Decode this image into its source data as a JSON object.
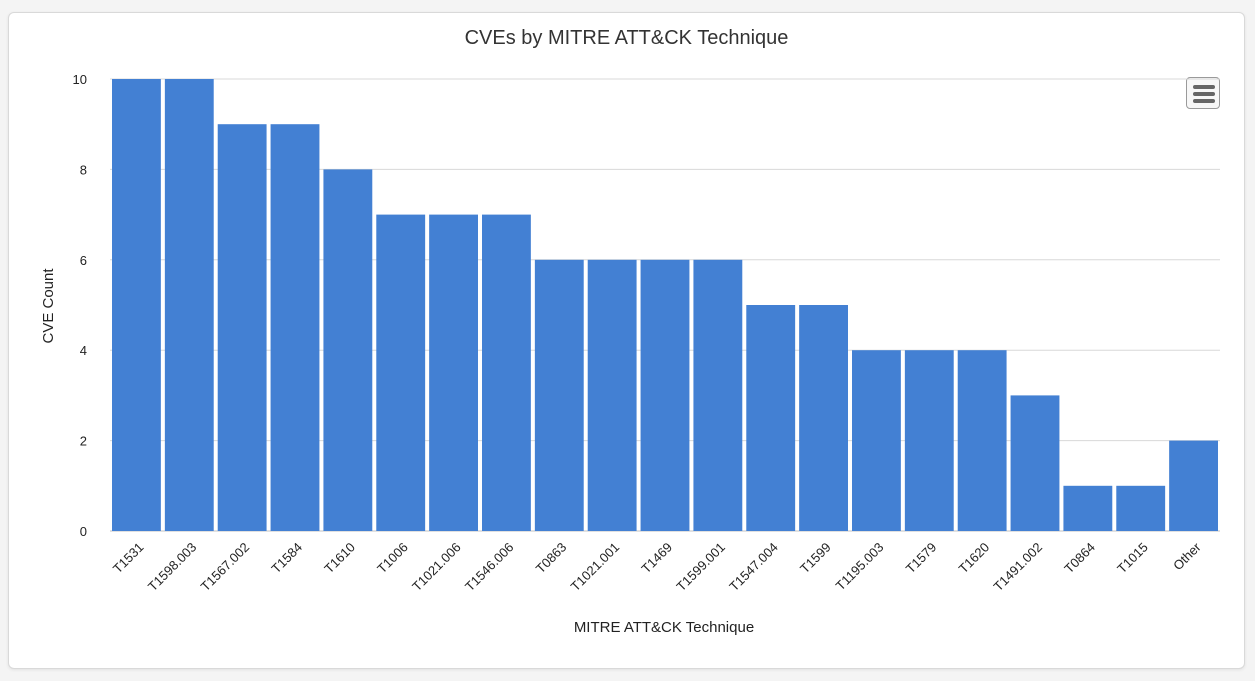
{
  "colors": {
    "bar": "#4380d3",
    "grid": "#d8d8d8",
    "axis": "#c0c0c0",
    "text": "#222222"
  },
  "menu": {
    "icon": "hamburger-menu-icon"
  },
  "chart_data": {
    "type": "bar",
    "title": "CVEs by MITRE ATT&CK Technique",
    "xlabel": "MITRE ATT&CK Technique",
    "ylabel": "CVE Count",
    "ylim": [
      0,
      10
    ],
    "yticks": [
      "0",
      "2",
      "4",
      "6",
      "8",
      "10"
    ],
    "grid": true,
    "categories": [
      "T1531",
      "T1598.003",
      "T1567.002",
      "T1584",
      "T1610",
      "T1006",
      "T1021.006",
      "T1546.006",
      "T0863",
      "T1021.001",
      "T1469",
      "T1599.001",
      "T1547.004",
      "T1599",
      "T1195.003",
      "T1579",
      "T1620",
      "T1491.002",
      "T0864",
      "T1015",
      "Other"
    ],
    "values": [
      10,
      10,
      9,
      9,
      8,
      7,
      7,
      7,
      6,
      6,
      6,
      6,
      5,
      5,
      4,
      4,
      4,
      3,
      1,
      1,
      2
    ]
  }
}
